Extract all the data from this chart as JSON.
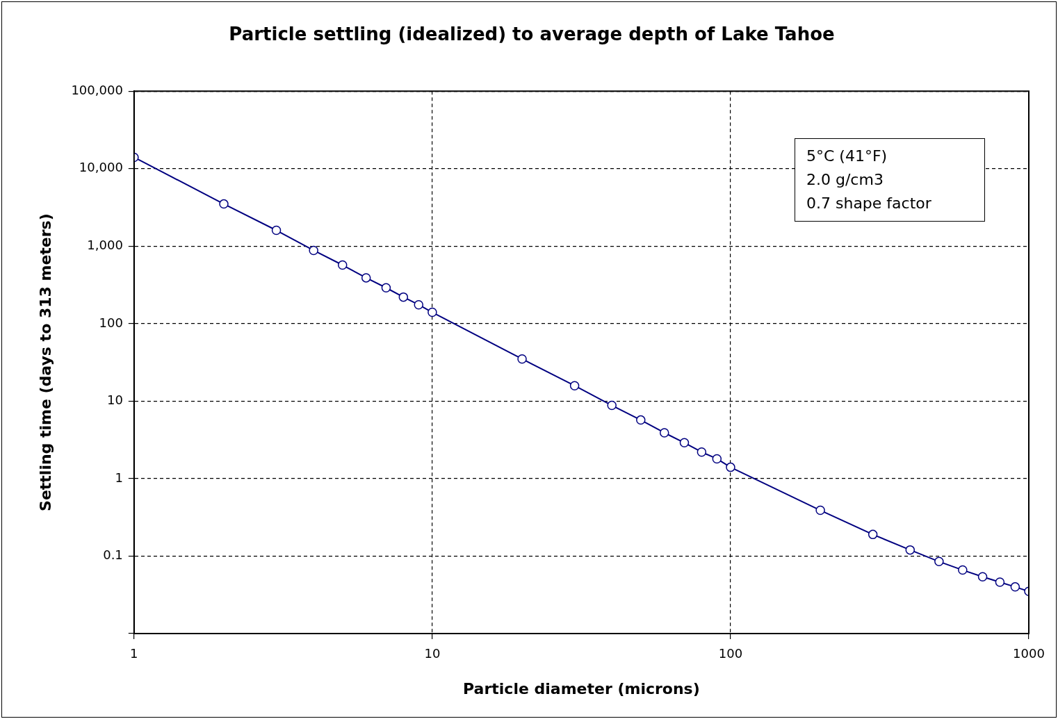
{
  "chart_data": {
    "type": "line",
    "title": "Particle settling (idealized) to average depth of Lake Tahoe",
    "xlabel": "Particle diameter (microns)",
    "ylabel": "Settling time (days to 313 meters)",
    "annotations": [
      "5°C (41°F)",
      "2.0 g/cm3",
      "0.7 shape factor"
    ],
    "x": [
      1,
      2,
      3,
      4,
      5,
      6,
      7,
      8,
      9,
      10,
      20,
      30,
      40,
      50,
      60,
      70,
      80,
      90,
      100,
      200,
      300,
      400,
      500,
      600,
      700,
      800,
      900,
      1000
    ],
    "series": [
      {
        "color": "#000080",
        "values": [
          14000,
          3500,
          1600,
          880,
          570,
          390,
          290,
          220,
          175,
          140,
          35,
          15.8,
          8.8,
          5.7,
          3.9,
          2.9,
          2.2,
          1.8,
          1.4,
          0.39,
          0.19,
          0.12,
          0.085,
          0.066,
          0.054,
          0.046,
          0.04,
          0.035
        ]
      }
    ],
    "xlim": [
      1,
      1000
    ],
    "xticks": [
      1,
      10,
      100,
      1000
    ],
    "ylim": [
      0.01,
      100000
    ],
    "yticks": [
      {
        "value": 0.01,
        "label": null
      },
      0.1,
      1,
      10,
      100,
      {
        "value": 1000,
        "label": "1,000"
      },
      {
        "value": 10000,
        "label": "10,000"
      },
      {
        "value": 100000,
        "label": "100,000"
      }
    ],
    "log": "xy",
    "grid": true,
    "marker": "circle",
    "legend": false
  }
}
